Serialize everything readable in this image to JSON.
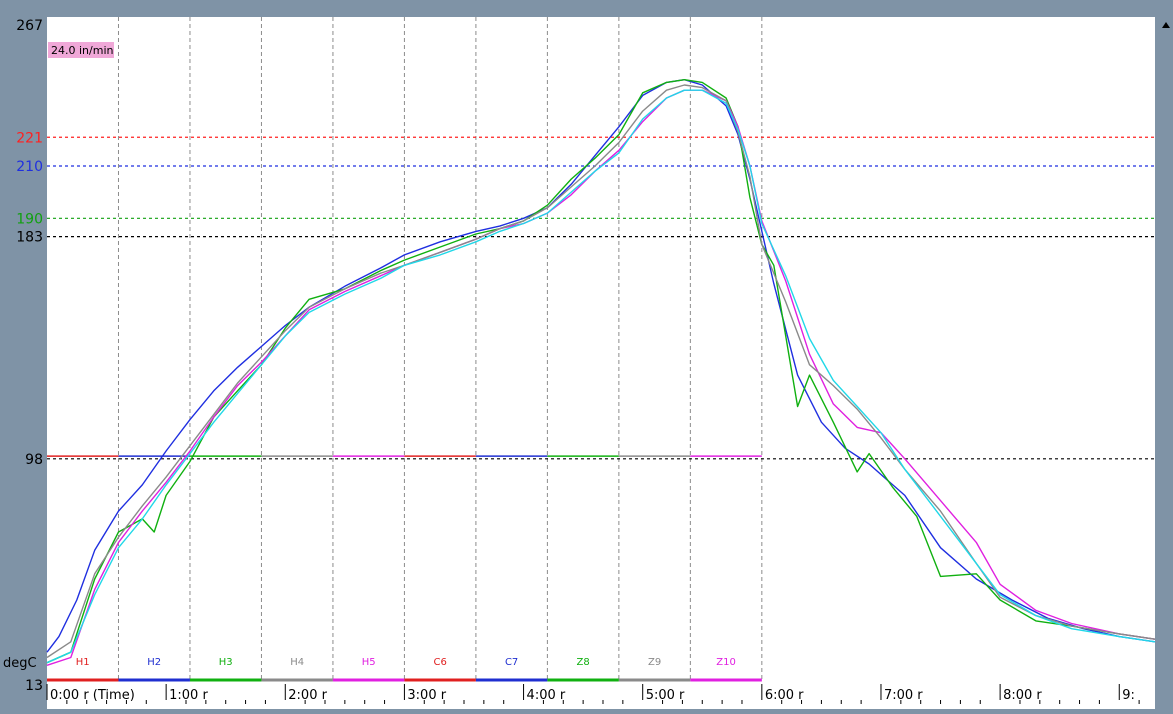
{
  "chart_data": {
    "type": "line",
    "title": "",
    "xlabel": "(Time)",
    "ylabel": "degC",
    "xlim": [
      0,
      9.3
    ],
    "ylim": [
      13,
      267
    ],
    "speed_badge": "24.0 in/min",
    "x_ticks": [
      {
        "x": 0,
        "label": "0:00 r (Time)"
      },
      {
        "x": 1,
        "label": "1:00 r"
      },
      {
        "x": 2,
        "label": "2:00 r"
      },
      {
        "x": 3,
        "label": "3:00 r"
      },
      {
        "x": 4,
        "label": "4:00 r"
      },
      {
        "x": 5,
        "label": "5:00 r"
      },
      {
        "x": 6,
        "label": "6:00 r"
      },
      {
        "x": 7,
        "label": "7:00 r"
      },
      {
        "x": 8,
        "label": "8:00 r"
      },
      {
        "x": 9,
        "label": "9:"
      }
    ],
    "y_axis_labels": [
      {
        "value": 267,
        "label": "267",
        "color": "#000000"
      },
      {
        "value": 13,
        "label": "13",
        "color": "#000000"
      }
    ],
    "reference_lines": [
      {
        "value": 221,
        "label": "221",
        "color": "#ff2020"
      },
      {
        "value": 210,
        "label": "210",
        "color": "#1f2fe0"
      },
      {
        "value": 190,
        "label": "190",
        "color": "#10a010"
      },
      {
        "value": 183,
        "label": "183",
        "color": "#000000"
      },
      {
        "value": 98,
        "label": "98",
        "color": "#000000"
      }
    ],
    "zones": [
      {
        "label": "H1",
        "color": "#e02020",
        "setpoint": 99
      },
      {
        "label": "H2",
        "color": "#1f2fd0",
        "setpoint": 99
      },
      {
        "label": "H3",
        "color": "#10b010",
        "setpoint": 99
      },
      {
        "label": "H4",
        "color": "#8a8a8a",
        "setpoint": 99
      },
      {
        "label": "H5",
        "color": "#e020e0",
        "setpoint": 99
      },
      {
        "label": "C6",
        "color": "#e02020",
        "setpoint": 99
      },
      {
        "label": "C7",
        "color": "#1f2fd0",
        "setpoint": 99
      },
      {
        "label": "Z8",
        "color": "#10b010",
        "setpoint": 99
      },
      {
        "label": "Z9",
        "color": "#8a8a8a",
        "setpoint": 99
      },
      {
        "label": "Z10",
        "color": "#e020e0",
        "setpoint": 99
      }
    ],
    "grid": "dashed vertical every 0.6 min zone boundary",
    "series": [
      {
        "color": "#1f2fe0",
        "x": [
          0,
          0.1,
          0.25,
          0.4,
          0.6,
          0.8,
          1.0,
          1.2,
          1.4,
          1.6,
          1.8,
          2.0,
          2.2,
          2.5,
          2.8,
          3.0,
          3.3,
          3.6,
          3.8,
          4.0,
          4.2,
          4.4,
          4.6,
          4.8,
          5.0,
          5.2,
          5.35,
          5.5,
          5.7,
          5.8,
          5.9,
          6.1,
          6.3,
          6.5,
          6.7,
          6.9,
          7.2,
          7.5,
          7.8,
          8.1,
          8.4,
          8.7,
          9.0,
          9.3
        ],
        "y": [
          24,
          30,
          44,
          63,
          78,
          88,
          101,
          113,
          124,
          133,
          141,
          149,
          156,
          164,
          171,
          176,
          181,
          185,
          187,
          190,
          194,
          203,
          214,
          225,
          237,
          242,
          243,
          241,
          233,
          222,
          205,
          165,
          130,
          112,
          102,
          96,
          84,
          64,
          52,
          44,
          37,
          33,
          30,
          28
        ]
      },
      {
        "color": "#10b010",
        "x": [
          0,
          0.2,
          0.4,
          0.6,
          0.8,
          0.9,
          1.0,
          1.2,
          1.4,
          1.6,
          1.8,
          2.0,
          2.2,
          2.5,
          2.8,
          3.0,
          3.3,
          3.6,
          3.8,
          4.0,
          4.2,
          4.4,
          4.6,
          4.8,
          5.0,
          5.2,
          5.35,
          5.5,
          5.7,
          5.8,
          5.9,
          6.0,
          6.1,
          6.2,
          6.3,
          6.4,
          6.6,
          6.8,
          6.9,
          7.1,
          7.3,
          7.5,
          7.8,
          8.0,
          8.3,
          8.6,
          9.0,
          9.3
        ],
        "y": [
          20,
          24,
          52,
          70,
          75,
          70,
          84,
          97,
          114,
          124,
          134,
          148,
          159,
          163,
          170,
          174,
          179,
          184,
          186,
          189,
          195,
          205,
          213,
          222,
          238,
          242,
          243,
          242,
          236,
          225,
          198,
          180,
          172,
          145,
          118,
          130,
          112,
          93,
          100,
          87,
          76,
          53,
          54,
          44,
          36,
          34,
          31,
          29
        ]
      },
      {
        "color": "#e020e0",
        "x": [
          0,
          0.2,
          0.4,
          0.6,
          0.8,
          1.0,
          1.2,
          1.4,
          1.6,
          1.8,
          2.0,
          2.2,
          2.5,
          2.8,
          3.0,
          3.3,
          3.6,
          3.8,
          4.0,
          4.2,
          4.4,
          4.6,
          4.8,
          5.0,
          5.2,
          5.35,
          5.5,
          5.7,
          5.8,
          5.9,
          6.0,
          6.2,
          6.4,
          6.6,
          6.8,
          7.0,
          7.2,
          7.5,
          7.8,
          8.0,
          8.3,
          8.6,
          9.0,
          9.3
        ],
        "y": [
          19,
          22,
          48,
          66,
          78,
          89,
          101,
          114,
          126,
          135,
          145,
          155,
          162,
          168,
          172,
          177,
          182,
          186,
          188,
          192,
          199,
          208,
          216,
          227,
          236,
          239,
          239,
          235,
          225,
          210,
          189,
          166,
          138,
          119,
          110,
          108,
          98,
          82,
          66,
          50,
          40,
          35,
          31,
          29
        ]
      },
      {
        "color": "#8a8a8a",
        "x": [
          0,
          0.2,
          0.4,
          0.6,
          0.8,
          1.0,
          1.2,
          1.4,
          1.6,
          1.8,
          2.0,
          2.2,
          2.5,
          2.8,
          3.0,
          3.3,
          3.6,
          3.8,
          4.0,
          4.2,
          4.4,
          4.6,
          4.8,
          5.0,
          5.2,
          5.35,
          5.5,
          5.7,
          5.8,
          5.9,
          6.0,
          6.2,
          6.4,
          6.6,
          6.8,
          7.0,
          7.2,
          7.5,
          7.8,
          8.0,
          8.3,
          8.6,
          9.0,
          9.3
        ],
        "y": [
          22,
          28,
          54,
          68,
          80,
          91,
          103,
          115,
          127,
          137,
          147,
          156,
          163,
          169,
          172,
          177,
          182,
          186,
          189,
          194,
          202,
          210,
          219,
          231,
          239,
          241,
          240,
          235,
          223,
          206,
          180,
          158,
          134,
          126,
          117,
          106,
          94,
          78,
          58,
          45,
          38,
          34,
          31,
          29
        ]
      },
      {
        "color": "#20d8e8",
        "x": [
          0,
          0.2,
          0.4,
          0.6,
          0.8,
          1.0,
          1.2,
          1.4,
          1.6,
          1.8,
          2.0,
          2.2,
          2.5,
          2.8,
          3.0,
          3.3,
          3.6,
          3.8,
          4.0,
          4.2,
          4.4,
          4.6,
          4.8,
          5.0,
          5.2,
          5.35,
          5.5,
          5.7,
          5.8,
          5.9,
          6.0,
          6.2,
          6.4,
          6.6,
          6.8,
          7.0,
          7.2,
          7.5,
          7.8,
          8.0,
          8.3,
          8.6,
          9.0,
          9.3
        ],
        "y": [
          20,
          24,
          46,
          64,
          75,
          88,
          100,
          112,
          123,
          134,
          145,
          154,
          161,
          167,
          172,
          176,
          181,
          185,
          188,
          192,
          200,
          208,
          215,
          228,
          236,
          239,
          239,
          234,
          224,
          210,
          188,
          168,
          144,
          128,
          118,
          108,
          94,
          76,
          58,
          46,
          38,
          33,
          30,
          28
        ]
      }
    ]
  }
}
